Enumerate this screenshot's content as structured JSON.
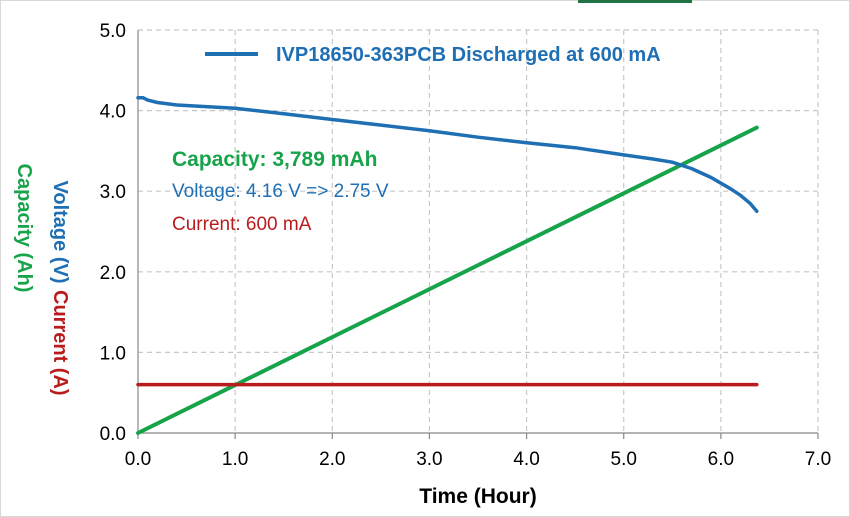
{
  "chart_data": {
    "type": "line",
    "title": "",
    "xlabel": "Time (Hour)",
    "ylabel_parts": {
      "voltage": "Voltage (V)",
      "current": "Current (A)",
      "capacity": "Capacity (Ah)"
    },
    "xlim": [
      0,
      7
    ],
    "ylim": [
      0,
      5
    ],
    "x_ticks": [
      "0.0",
      "1.0",
      "2.0",
      "3.0",
      "4.0",
      "5.0",
      "6.0",
      "7.0"
    ],
    "y_ticks": [
      "0.0",
      "1.0",
      "2.0",
      "3.0",
      "4.0",
      "5.0"
    ],
    "grid": "dashed",
    "legend_position": "top",
    "series": [
      {
        "name": "IVP18650-363PCB Discharged at 600 mA",
        "color": "#1f6fb4",
        "x": [
          0.0,
          0.05,
          0.1,
          0.2,
          0.4,
          0.7,
          1.0,
          1.5,
          2.0,
          2.5,
          3.0,
          3.5,
          4.0,
          4.5,
          5.0,
          5.3,
          5.5,
          5.7,
          5.9,
          6.1,
          6.2,
          6.3,
          6.37
        ],
        "y": [
          4.16,
          4.16,
          4.13,
          4.1,
          4.07,
          4.05,
          4.03,
          3.96,
          3.89,
          3.82,
          3.75,
          3.67,
          3.6,
          3.54,
          3.45,
          3.4,
          3.36,
          3.28,
          3.17,
          3.03,
          2.95,
          2.85,
          2.75
        ]
      },
      {
        "name": "Capacity",
        "color": "#16a34a",
        "x": [
          0.0,
          6.37
        ],
        "y": [
          0.0,
          3.789
        ]
      },
      {
        "name": "Current",
        "color": "#b91c1c",
        "x": [
          0.0,
          6.37
        ],
        "y": [
          0.6,
          0.6
        ]
      }
    ],
    "annotations": {
      "capacity": "Capacity: 3,789 mAh",
      "voltage": "Voltage: 4.16 V => 2.75 V",
      "current": "Current: 600 mA"
    }
  }
}
